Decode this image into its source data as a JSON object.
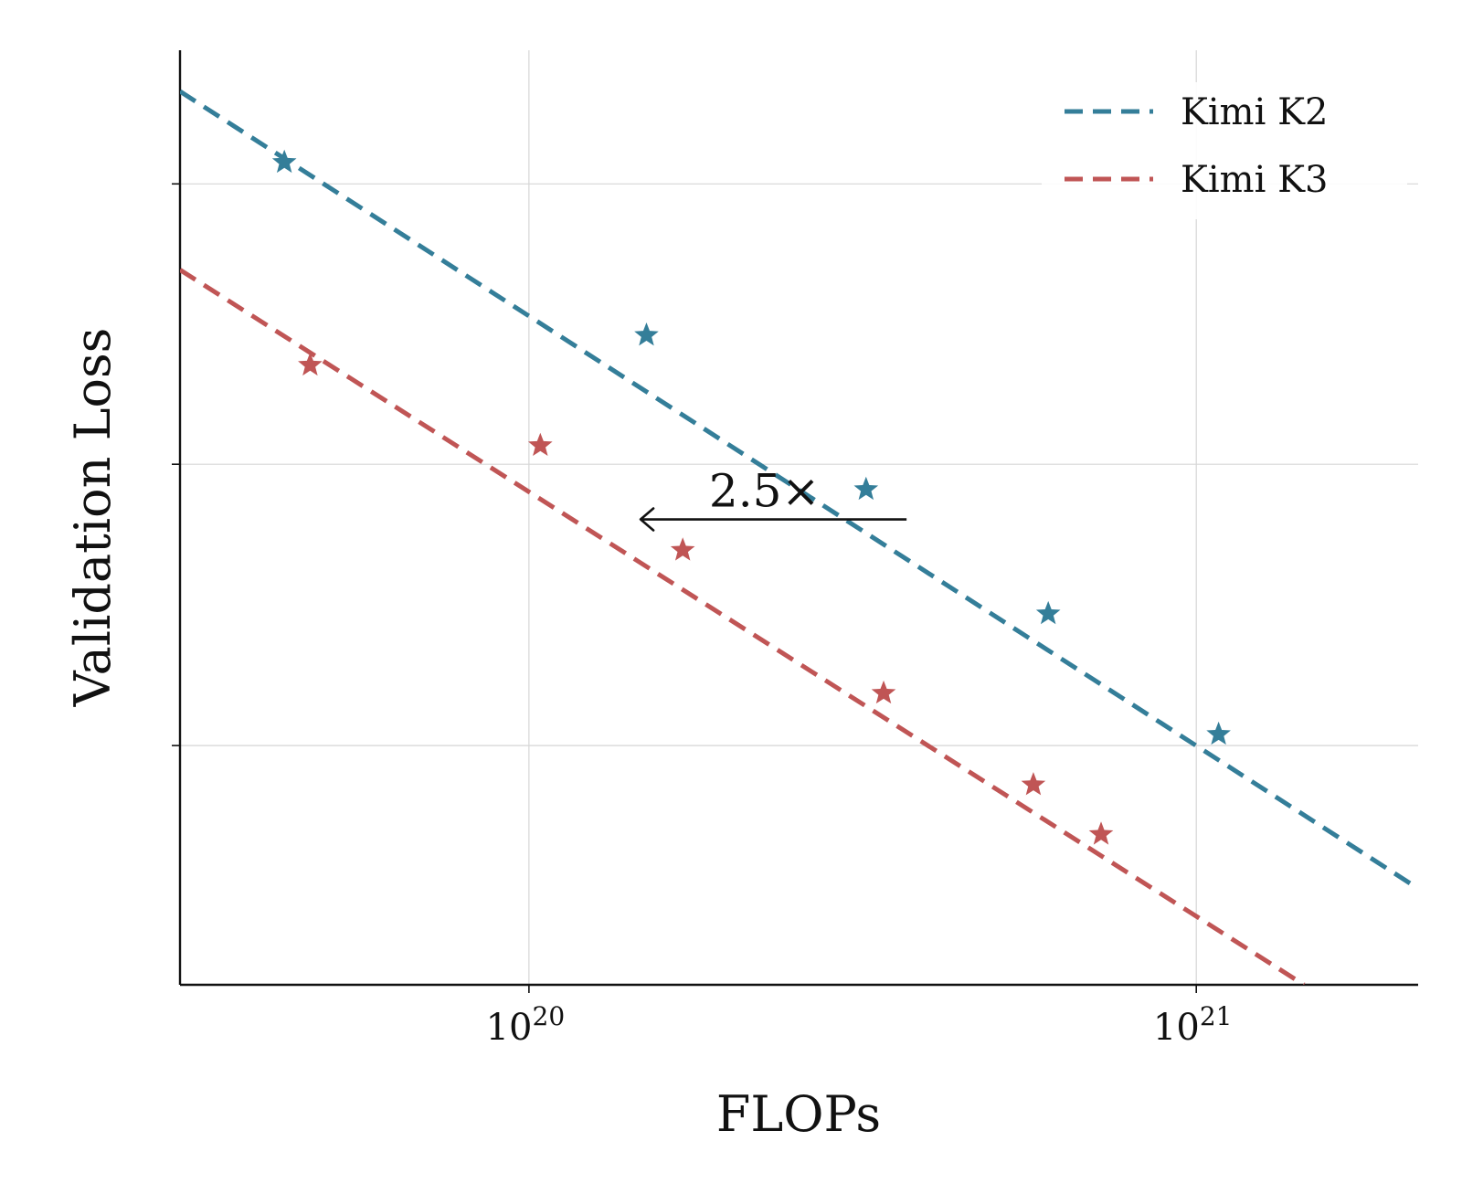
{
  "chart_data": {
    "type": "line",
    "xlabel": "FLOPs",
    "ylabel": "Validation Loss",
    "xscale": "log",
    "xlim": [
      3e+19,
      2.15e+21
    ],
    "ylim": [
      0,
      10
    ],
    "x_ticks": [
      {
        "value": 1e+20,
        "base": "10",
        "exp": "20"
      },
      {
        "value": 1e+21,
        "base": "10",
        "exp": "21"
      }
    ],
    "y_ticks": [
      2.56,
      5.57,
      8.57
    ],
    "grid": true,
    "legend_position": "top-right",
    "series": [
      {
        "name": "Kimi K2",
        "color": "#347e99",
        "fit_line": [
          [
            3e+19,
            9.56
          ],
          [
            2.15e+21,
            1.03
          ]
        ],
        "points": [
          [
            4.3e+19,
            8.8
          ],
          [
            1.5e+20,
            6.95
          ],
          [
            3.2e+20,
            5.3
          ],
          [
            6e+20,
            3.97
          ],
          [
            1.08e+21,
            2.68
          ]
        ]
      },
      {
        "name": "Kimi K3",
        "color": "#c05555",
        "fit_line": [
          [
            3e+19,
            7.65
          ],
          [
            1.45e+21,
            0
          ]
        ],
        "points": [
          [
            4.7e+19,
            6.63
          ],
          [
            1.04e+20,
            5.77
          ],
          [
            1.7e+20,
            4.65
          ],
          [
            3.4e+20,
            3.12
          ],
          [
            5.7e+20,
            2.14
          ],
          [
            7.2e+20,
            1.61
          ]
        ]
      }
    ],
    "annotations": [
      {
        "text": "2.5×",
        "arrow_from": [
          3.68e+20,
          4.98
        ],
        "arrow_to": [
          1.47e+20,
          4.98
        ]
      }
    ]
  }
}
